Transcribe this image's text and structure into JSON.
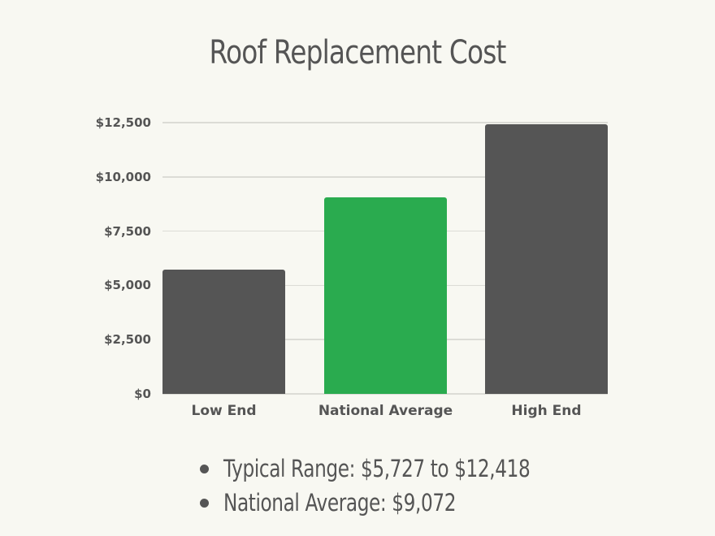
{
  "chart_data": {
    "type": "bar",
    "title": "Roof Replacement Cost",
    "categories": [
      "Low End",
      "National Average",
      "High End"
    ],
    "values": [
      5727,
      9072,
      12418
    ],
    "colors": [
      "#555555",
      "#2aab4f",
      "#555555"
    ],
    "xlabel": "",
    "ylabel": "",
    "ylim": [
      0,
      12500
    ],
    "yticks": [
      0,
      2500,
      5000,
      7500,
      10000,
      12500
    ],
    "ytick_labels": [
      "$0",
      "$2,500",
      "$5,000",
      "$7,500",
      "$10,000",
      "$12,500"
    ],
    "grid": true,
    "legend": "none"
  },
  "title": "Roof Replacement Cost",
  "bullets": [
    "Typical Range: $5,727 to $12,418",
    "National Average: $9,072"
  ],
  "colors": {
    "background": "#f8f8f2",
    "text": "#555555",
    "bar_default": "#555555",
    "bar_highlight": "#2aab4f",
    "gridline": "#dcdcd6"
  }
}
